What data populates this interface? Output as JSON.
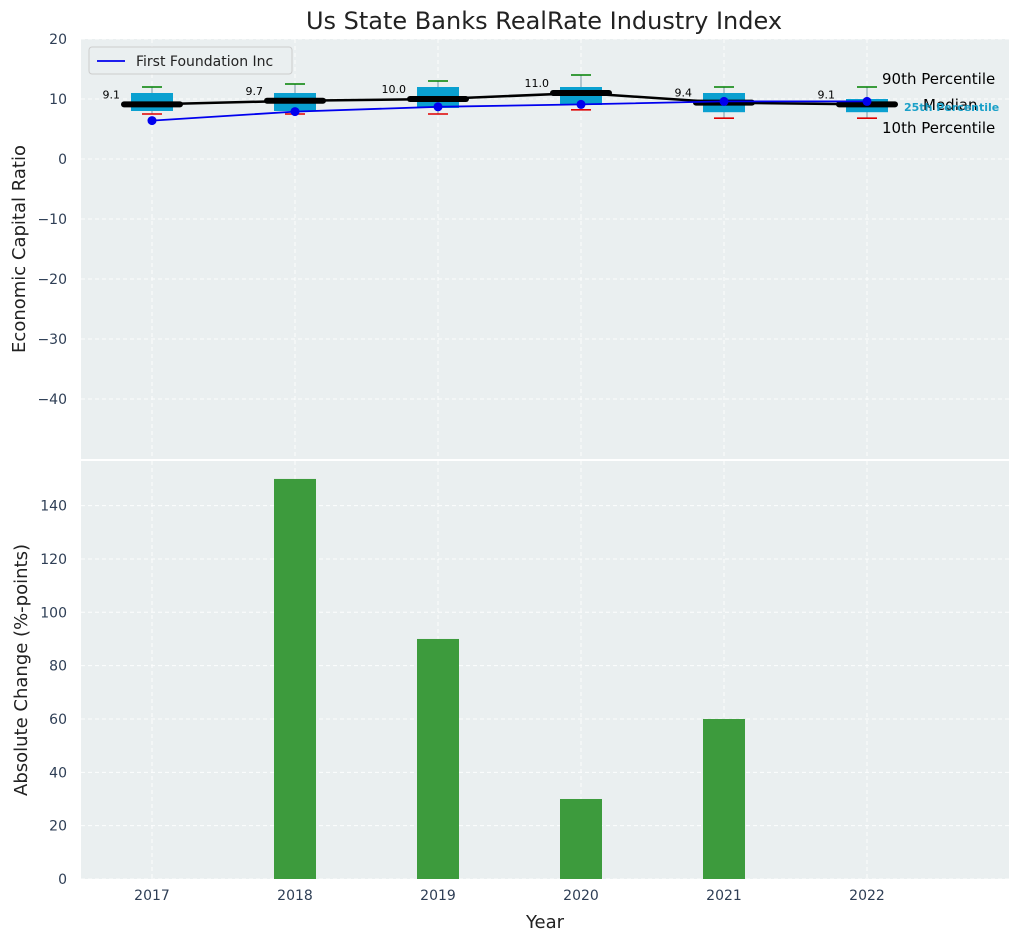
{
  "chart_data": [
    {
      "type": "box",
      "title": "Us State Banks RealRate Industry Index",
      "xlabel": "",
      "ylabel": "Economic Capital Ratio",
      "ylim": [
        -50,
        20
      ],
      "yticks": [
        20,
        10,
        0,
        -10,
        -20,
        -30,
        -40
      ],
      "categories": [
        "2017",
        "2018",
        "2019",
        "2020",
        "2021",
        "2022"
      ],
      "box": {
        "p10": [
          7.5,
          7.5,
          7.5,
          8.2,
          6.8,
          6.8
        ],
        "q1": [
          8.0,
          8.0,
          8.5,
          9.0,
          7.8,
          7.8
        ],
        "median": [
          9.1,
          9.7,
          10.0,
          11.0,
          9.4,
          9.1
        ],
        "q3": [
          11.0,
          11.0,
          12.0,
          12.0,
          11.0,
          10.0
        ],
        "p90": [
          12.0,
          12.5,
          13.0,
          14.0,
          12.0,
          12.0
        ]
      },
      "median_labels": [
        "9.1",
        "9.7",
        "10.0",
        "11.0",
        "9.4",
        "9.1"
      ],
      "series": [
        {
          "name": "First Foundation Inc",
          "values": [
            6.4,
            7.9,
            8.7,
            9.1,
            9.6,
            9.6
          ]
        }
      ],
      "percentile_labels": {
        "p90": "90th Percentile",
        "median": "Median",
        "p10": "10th Percentile",
        "p25": "25th Percentile"
      },
      "legend": {
        "entries": [
          "First Foundation Inc"
        ],
        "position": "top-left"
      },
      "grid": true
    },
    {
      "type": "bar",
      "xlabel": "Year",
      "ylabel": "Absolute Change (%-points)",
      "ylim": [
        0,
        160
      ],
      "yticks": [
        0,
        20,
        40,
        60,
        80,
        100,
        120,
        140
      ],
      "categories": [
        "2017",
        "2018",
        "2019",
        "2020",
        "2021",
        "2022"
      ],
      "values": [
        0,
        150,
        90,
        30,
        60,
        0
      ],
      "grid": true
    }
  ],
  "colors": {
    "panel_bg": "#eaeff0",
    "box_fill": "#0aa0d0",
    "company_line": "#0000ee",
    "median_line": "#000000",
    "p90_whisker": "#008000",
    "p10_whisker": "#e00000",
    "bar_fill": "#3d9b3d",
    "p25_text": "#1aa0c8"
  }
}
